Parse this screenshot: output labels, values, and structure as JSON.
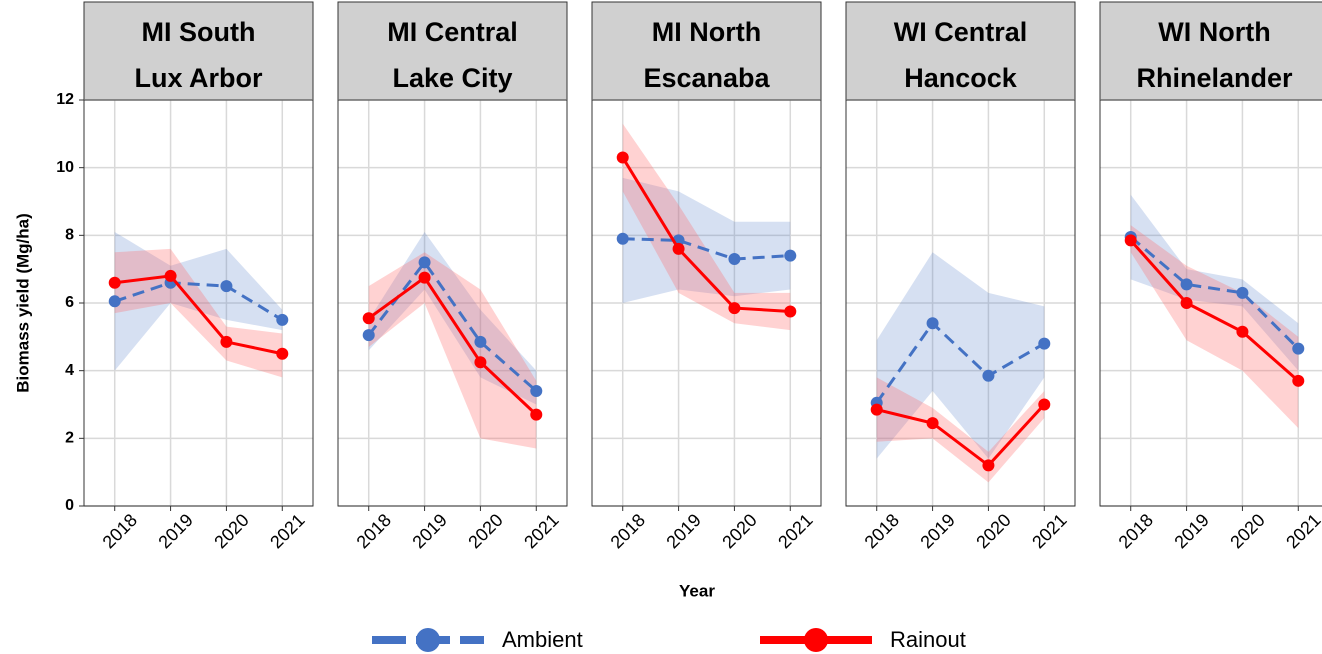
{
  "chart_data": {
    "type": "line",
    "ylabel": "Biomass yield (Mg/ha)",
    "xlabel": "Year",
    "categories": [
      "2018",
      "2019",
      "2020",
      "2021"
    ],
    "ylim": [
      0,
      12
    ],
    "yticks": [
      0,
      2,
      4,
      6,
      8,
      10,
      12
    ],
    "grid": true,
    "legend": "bottom",
    "series_styles": [
      {
        "name": "Ambient",
        "color": "#4472c4",
        "band_color": "#4472c4",
        "dashed": true
      },
      {
        "name": "Rainout",
        "color": "#ff0000",
        "band_color": "#ff6b6b",
        "dashed": false
      }
    ],
    "facets": [
      {
        "title": [
          "MI South",
          "Lux Arbor"
        ],
        "series": [
          {
            "values": [
              6.05,
              6.6,
              6.5,
              5.5
            ],
            "lower": [
              4.0,
              6.0,
              5.5,
              5.2
            ],
            "upper": [
              8.1,
              7.1,
              7.6,
              5.8
            ]
          },
          {
            "values": [
              6.6,
              6.8,
              4.85,
              4.5
            ],
            "lower": [
              5.7,
              6.0,
              4.3,
              3.8
            ],
            "upper": [
              7.5,
              7.6,
              5.3,
              5.1
            ]
          }
        ]
      },
      {
        "title": [
          "MI Central",
          "Lake City"
        ],
        "series": [
          {
            "values": [
              5.05,
              7.2,
              4.85,
              3.4
            ],
            "lower": [
              4.6,
              6.4,
              3.8,
              3.0
            ],
            "upper": [
              5.5,
              8.1,
              5.8,
              4.0
            ]
          },
          {
            "values": [
              5.55,
              6.75,
              4.25,
              2.7
            ],
            "lower": [
              4.7,
              6.0,
              2.0,
              1.7
            ],
            "upper": [
              6.5,
              7.5,
              6.4,
              3.7
            ]
          }
        ]
      },
      {
        "title": [
          "MI North",
          "Escanaba"
        ],
        "series": [
          {
            "values": [
              7.9,
              7.85,
              7.3,
              7.4
            ],
            "lower": [
              6.0,
              6.4,
              6.2,
              6.4
            ],
            "upper": [
              9.7,
              9.3,
              8.4,
              8.4
            ]
          },
          {
            "values": [
              10.3,
              7.6,
              5.85,
              5.75
            ],
            "lower": [
              9.3,
              6.3,
              5.4,
              5.2
            ],
            "upper": [
              11.3,
              8.9,
              6.3,
              6.3
            ]
          }
        ]
      },
      {
        "title": [
          "WI Central",
          "Hancock"
        ],
        "series": [
          {
            "values": [
              3.05,
              5.4,
              3.85,
              4.8
            ],
            "lower": [
              1.4,
              3.4,
              1.4,
              3.8
            ],
            "upper": [
              4.9,
              7.5,
              6.3,
              5.9
            ]
          },
          {
            "values": [
              2.85,
              2.45,
              1.2,
              3.0
            ],
            "lower": [
              1.9,
              2.0,
              0.7,
              2.6
            ],
            "upper": [
              3.8,
              2.9,
              1.6,
              3.4
            ]
          }
        ]
      },
      {
        "title": [
          "WI North",
          "Rhinelander"
        ],
        "series": [
          {
            "values": [
              7.95,
              6.55,
              6.3,
              4.65
            ],
            "lower": [
              6.7,
              6.1,
              5.9,
              4.0
            ],
            "upper": [
              9.2,
              7.0,
              6.7,
              5.4
            ]
          },
          {
            "values": [
              7.85,
              6.0,
              5.15,
              3.7
            ],
            "lower": [
              7.5,
              4.9,
              4.0,
              2.3
            ],
            "upper": [
              8.3,
              7.1,
              6.3,
              5.0
            ]
          }
        ]
      }
    ]
  }
}
